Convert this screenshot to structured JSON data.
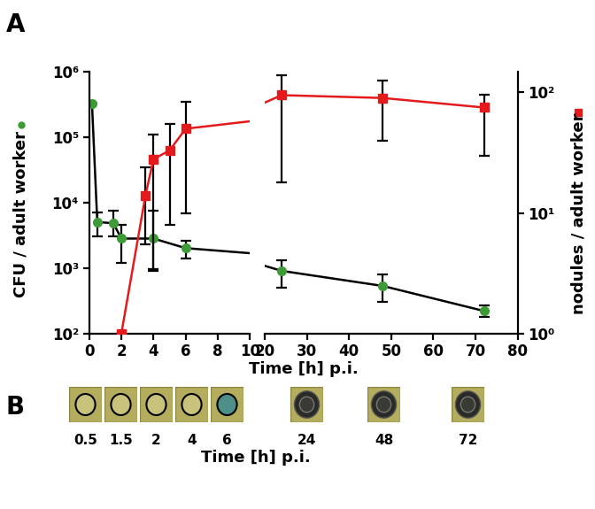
{
  "panel_labels": [
    "A",
    "B"
  ],
  "xlabel": "Time [h] p.i.",
  "chart_data": [
    {
      "type": "line",
      "log": "y",
      "xlim": [
        0,
        10
      ],
      "xticks": [
        0,
        2,
        4,
        6,
        8,
        10
      ],
      "ylim": [
        100,
        1000000
      ],
      "yticks": [
        {
          "value": 100,
          "label": "10²"
        },
        {
          "value": 1000,
          "label": "10³"
        },
        {
          "value": 10000,
          "label": "10⁴"
        },
        {
          "value": 100000,
          "label": "10⁵"
        },
        {
          "value": 1000000,
          "label": "10⁶"
        }
      ],
      "ylabel": "CFU / adult worker",
      "series": [
        {
          "color": "#3d9b35",
          "marker": "circle",
          "axis": "y",
          "x": [
            0.17,
            0.5,
            1.5,
            2,
            4,
            6
          ],
          "values": [
            320000,
            5000,
            4800,
            2800,
            2800,
            2000
          ],
          "error_lower": [
            null,
            3000,
            3000,
            1200,
            900,
            1400
          ],
          "error_upper": [
            null,
            7000,
            7500,
            4500,
            7500,
            2600
          ]
        },
        {
          "color": "#e41a1c",
          "marker": "square",
          "axis": "y2",
          "x": [
            2,
            3.5,
            4,
            5,
            6
          ],
          "values": [
            1,
            14,
            28,
            33,
            50
          ],
          "error_lower": [
            null,
            5.5,
            3.4,
            7.9,
            10
          ],
          "error_upper": [
            null,
            24,
            45,
            55,
            83
          ]
        }
      ]
    },
    {
      "type": "line",
      "log": "y",
      "xlim": [
        20,
        80
      ],
      "xticks": [
        20,
        30,
        40,
        50,
        60,
        70,
        80
      ],
      "y2lim": [
        1,
        150
      ],
      "y2ticks": [
        {
          "value": 1,
          "label": "10⁰"
        },
        {
          "value": 10,
          "label": "10¹"
        },
        {
          "value": 100,
          "label": "10²"
        }
      ],
      "y2label": "nodules / adult worker",
      "series": [
        {
          "color": "#3d9b35",
          "marker": "circle",
          "axis": "y",
          "x": [
            24,
            48,
            72
          ],
          "values": [
            900,
            530,
            220
          ],
          "error_lower": [
            500,
            300,
            180
          ],
          "error_upper": [
            1300,
            800,
            270
          ]
        },
        {
          "color": "#e41a1c",
          "marker": "square",
          "axis": "y2",
          "x": [
            24,
            48,
            72
          ],
          "values": [
            95,
            90,
            75
          ],
          "error_lower": [
            18,
            40,
            30
          ],
          "error_upper": [
            140,
            125,
            95
          ]
        }
      ]
    }
  ],
  "panel_B": {
    "labels": [
      0.5,
      1.5,
      2,
      4,
      6,
      24,
      48,
      72
    ],
    "xlabel": "Time [h] p.i."
  }
}
